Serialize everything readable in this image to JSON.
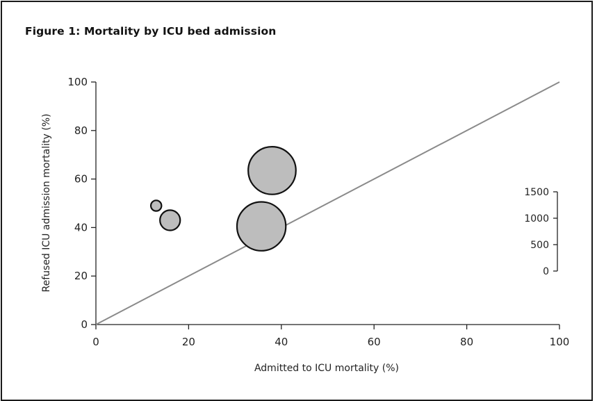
{
  "figure_title": "Figure 1: Mortality by ICU bed admission",
  "chart_data": {
    "type": "scatter",
    "subtype": "bubble",
    "title": "",
    "xlabel": "Admitted to ICU mortality (%)",
    "ylabel": "Refused ICU admission mortality (%)",
    "xlim": [
      0,
      100
    ],
    "ylim": [
      0,
      100
    ],
    "xticks": [
      0,
      20,
      40,
      60,
      80,
      100
    ],
    "yticks": [
      0,
      20,
      40,
      60,
      80,
      100
    ],
    "points": [
      {
        "x": 13,
        "y": 49,
        "size": 50
      },
      {
        "x": 16,
        "y": 43,
        "size": 180
      },
      {
        "x": 35.7,
        "y": 40.5,
        "size": 1050
      },
      {
        "x": 38,
        "y": 63.5,
        "size": 1000
      }
    ],
    "reference_line": {
      "from": [
        0,
        0
      ],
      "to": [
        100,
        100
      ],
      "color": "#8a8a8a"
    },
    "size_legend": {
      "values": [
        0,
        500,
        1000,
        1500
      ]
    },
    "bubble_fill": "#bdbdbd",
    "bubble_stroke": "#111111",
    "grid": false
  }
}
